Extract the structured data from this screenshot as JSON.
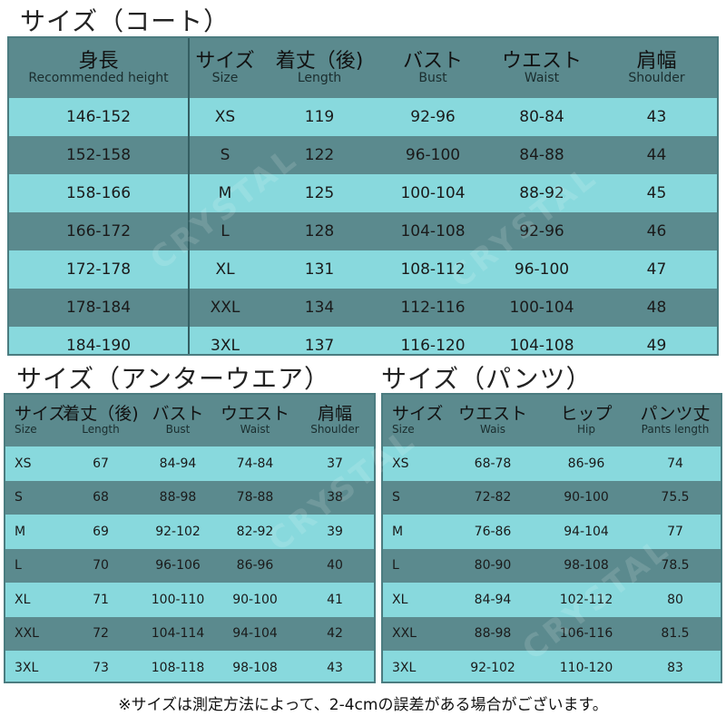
{
  "coat": {
    "title": "サイズ（コート）",
    "headers": [
      {
        "jp": "身長",
        "en": "Recommended height"
      },
      {
        "jp": "サイズ",
        "en": "Size"
      },
      {
        "jp": "着丈（後)",
        "en": "Length"
      },
      {
        "jp": "バスト",
        "en": "Bust"
      },
      {
        "jp": "ウエスト",
        "en": "Waist"
      },
      {
        "jp": "肩幅",
        "en": "Shoulder"
      }
    ],
    "rows": [
      [
        "146-152",
        "XS",
        "119",
        "92-96",
        "80-84",
        "43"
      ],
      [
        "152-158",
        "S",
        "122",
        "96-100",
        "84-88",
        "44"
      ],
      [
        "158-166",
        "M",
        "125",
        "100-104",
        "88-92",
        "45"
      ],
      [
        "166-172",
        "L",
        "128",
        "104-108",
        "92-96",
        "46"
      ],
      [
        "172-178",
        "XL",
        "131",
        "108-112",
        "96-100",
        "47"
      ],
      [
        "178-184",
        "XXL",
        "134",
        "112-116",
        "100-104",
        "48"
      ],
      [
        "184-190",
        "3XL",
        "137",
        "116-120",
        "104-108",
        "49"
      ]
    ]
  },
  "under": {
    "title": "サイズ（アンターウエア）",
    "headers": [
      {
        "jp": "サイズ",
        "en": "Size"
      },
      {
        "jp": "着丈（後)",
        "en": "Length"
      },
      {
        "jp": "バスト",
        "en": "Bust"
      },
      {
        "jp": "ウエスト",
        "en": "Waist"
      },
      {
        "jp": "肩幅",
        "en": "Shoulder"
      }
    ],
    "rows": [
      [
        "XS",
        "67",
        "84-94",
        "74-84",
        "37"
      ],
      [
        "S",
        "68",
        "88-98",
        "78-88",
        "38"
      ],
      [
        "M",
        "69",
        "92-102",
        "82-92",
        "39"
      ],
      [
        "L",
        "70",
        "96-106",
        "86-96",
        "40"
      ],
      [
        "XL",
        "71",
        "100-110",
        "90-100",
        "41"
      ],
      [
        "XXL",
        "72",
        "104-114",
        "94-104",
        "42"
      ],
      [
        "3XL",
        "73",
        "108-118",
        "98-108",
        "43"
      ]
    ]
  },
  "pants": {
    "title": "サイズ（パンツ）",
    "headers": [
      {
        "jp": "サイズ",
        "en": "Size"
      },
      {
        "jp": "ウエスト",
        "en": "Wais"
      },
      {
        "jp": "ヒップ",
        "en": "Hip"
      },
      {
        "jp": "パンツ丈",
        "en": "Pants length"
      }
    ],
    "rows": [
      [
        "XS",
        "68-78",
        "86-96",
        "74"
      ],
      [
        "S",
        "72-82",
        "90-100",
        "75.5"
      ],
      [
        "M",
        "76-86",
        "94-104",
        "77"
      ],
      [
        "L",
        "80-90",
        "98-108",
        "78.5"
      ],
      [
        "XL",
        "84-94",
        "102-112",
        "80"
      ],
      [
        "XXL",
        "88-98",
        "106-116",
        "81.5"
      ],
      [
        "3XL",
        "92-102",
        "110-120",
        "83"
      ]
    ]
  },
  "note": "※サイズは測定方法によって、2-4cmの誤差がある場合がございます。",
  "watermark": "CRYSTAL",
  "colors": {
    "header": "#5b8a8e",
    "teal_row": "#5b8a8e",
    "cyan_row": "#88d9dd",
    "border": "#4b7c80"
  }
}
